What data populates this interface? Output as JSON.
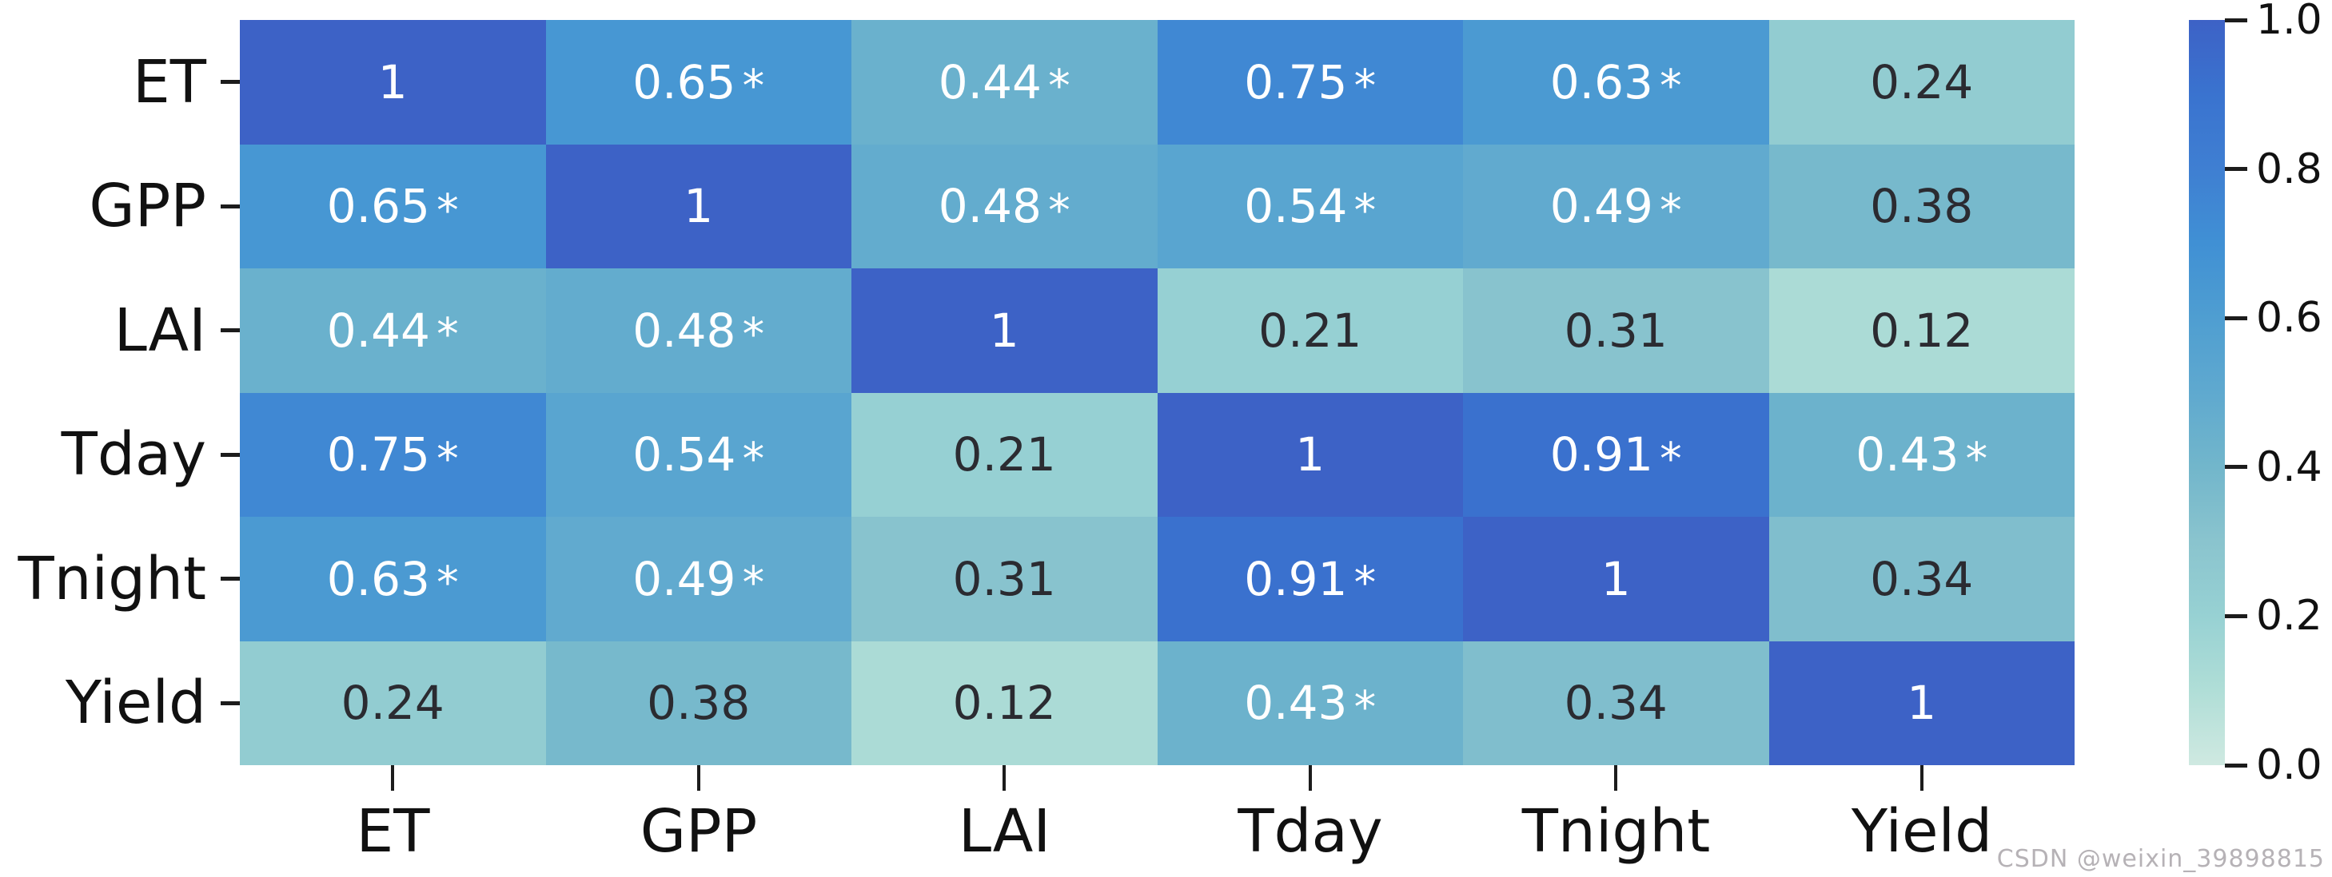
{
  "chart_data": {
    "type": "heatmap",
    "title": "",
    "xlabel": "",
    "ylabel": "",
    "categories": [
      "ET",
      "GPP",
      "LAI",
      "Tday",
      "Tnight",
      "Yield"
    ],
    "x_tick_labels": [
      "ET",
      "GPP",
      "LAI",
      "Tday",
      "Tnight",
      "Yield"
    ],
    "y_tick_labels": [
      "ET",
      "GPP",
      "LAI",
      "Tday",
      "Tnight",
      "Yield"
    ],
    "matrix": [
      [
        1.0,
        0.65,
        0.44,
        0.75,
        0.63,
        0.24
      ],
      [
        0.65,
        1.0,
        0.48,
        0.54,
        0.49,
        0.38
      ],
      [
        0.44,
        0.48,
        1.0,
        0.21,
        0.31,
        0.12
      ],
      [
        0.75,
        0.54,
        0.21,
        1.0,
        0.91,
        0.43
      ],
      [
        0.63,
        0.49,
        0.31,
        0.91,
        1.0,
        0.34
      ],
      [
        0.24,
        0.38,
        0.12,
        0.43,
        0.34,
        1.0
      ]
    ],
    "cell_labels": [
      [
        "1",
        "0.65*",
        "0.44*",
        "0.75*",
        "0.63*",
        "0.24"
      ],
      [
        "0.65*",
        "1",
        "0.48*",
        "0.54*",
        "0.49*",
        "0.38"
      ],
      [
        "0.44*",
        "0.48*",
        "1",
        "0.21",
        "0.31",
        "0.12"
      ],
      [
        "0.75*",
        "0.54*",
        "0.21",
        "1",
        "0.91*",
        "0.43*"
      ],
      [
        "0.63*",
        "0.49*",
        "0.31",
        "0.91*",
        "1",
        "0.34"
      ],
      [
        "0.24",
        "0.38",
        "0.12",
        "0.43*",
        "0.34",
        "1"
      ]
    ],
    "colorbar": {
      "min": 0.0,
      "max": 1.0,
      "tick_values": [
        1.0,
        0.8,
        0.6,
        0.4,
        0.2,
        0.0
      ],
      "tick_labels": [
        "1.0",
        "0.8",
        "0.6",
        "0.4",
        "0.2",
        "0.0"
      ],
      "position": "right"
    },
    "colormap_stops": [
      {
        "t": 0.0,
        "color": "#cfe9e1"
      },
      {
        "t": 0.1,
        "color": "#b0ded7"
      },
      {
        "t": 0.2,
        "color": "#97d1d3"
      },
      {
        "t": 0.3,
        "color": "#8ac4ce"
      },
      {
        "t": 0.4,
        "color": "#72b6cb"
      },
      {
        "t": 0.5,
        "color": "#5fa9cf"
      },
      {
        "t": 0.6,
        "color": "#4f9ed1"
      },
      {
        "t": 0.7,
        "color": "#4090d4"
      },
      {
        "t": 0.8,
        "color": "#3f7fd2"
      },
      {
        "t": 0.9,
        "color": "#3a73cf"
      },
      {
        "t": 1.0,
        "color": "#3d62c6"
      }
    ],
    "text_colors": {
      "on_dark_cell": "#ffffff",
      "on_light_cell": "#2b2b31",
      "white_text_threshold": 0.4
    },
    "grid": false,
    "legend_position": "right-colorbar"
  },
  "watermark": {
    "text": "CSDN @weixin_39898815",
    "color": "#b6b2b6"
  }
}
